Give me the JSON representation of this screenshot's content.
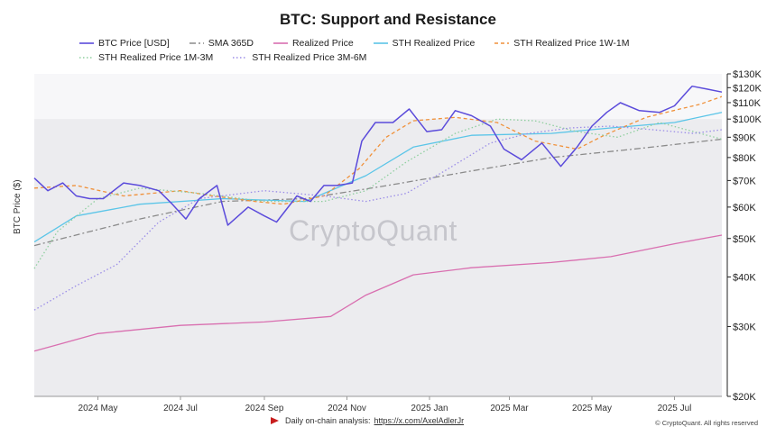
{
  "chart_data": {
    "type": "line",
    "title": "BTC: Support and Resistance",
    "ylabel": "BTC Price ($)",
    "y_scale": "log",
    "ylim": [
      20000,
      130000
    ],
    "y_ticks": [
      20000,
      30000,
      40000,
      50000,
      60000,
      70000,
      80000,
      90000,
      100000,
      110000,
      120000,
      130000
    ],
    "y_tick_labels": [
      "$20K",
      "$30K",
      "$40K",
      "$50K",
      "$60K",
      "$70K",
      "$80K",
      "$90K",
      "$100K",
      "$110K",
      "$120K",
      "$130K"
    ],
    "x_tick_labels": [
      "2024 May",
      "2024 Jul",
      "2024 Sep",
      "2024 Nov",
      "2025 Jan",
      "2025 Mar",
      "2025 May",
      "2025 Jul"
    ],
    "x_range": [
      "2024-03-15",
      "2025-08-05"
    ],
    "shaded_band": {
      "from": 20000,
      "to": 100000,
      "color": "#ececef"
    },
    "legend_position": "top",
    "series": [
      {
        "name": "BTC Price [USD]",
        "color": "#5b4bdb",
        "style": "solid",
        "x": [
          "2024-03-15",
          "2024-03-25",
          "2024-04-05",
          "2024-04-15",
          "2024-04-25",
          "2024-05-05",
          "2024-05-20",
          "2024-06-01",
          "2024-06-15",
          "2024-06-25",
          "2024-07-05",
          "2024-07-15",
          "2024-07-28",
          "2024-08-05",
          "2024-08-20",
          "2024-09-01",
          "2024-09-10",
          "2024-09-25",
          "2024-10-05",
          "2024-10-15",
          "2024-10-25",
          "2024-11-05",
          "2024-11-12",
          "2024-11-22",
          "2024-12-05",
          "2024-12-17",
          "2024-12-30",
          "2025-01-10",
          "2025-01-20",
          "2025-02-01",
          "2025-02-15",
          "2025-02-25",
          "2025-03-10",
          "2025-03-25",
          "2025-04-08",
          "2025-04-20",
          "2025-05-01",
          "2025-05-12",
          "2025-05-22",
          "2025-06-05",
          "2025-06-20",
          "2025-07-01",
          "2025-07-10",
          "2025-07-14",
          "2025-07-25",
          "2025-08-05"
        ],
        "values": [
          71000,
          66000,
          69000,
          64000,
          63000,
          63000,
          69000,
          68000,
          66000,
          61000,
          56000,
          63000,
          68000,
          54000,
          60000,
          57000,
          55000,
          64000,
          62000,
          68000,
          68000,
          69000,
          88000,
          98000,
          98000,
          106000,
          93000,
          94000,
          105000,
          102000,
          96000,
          84000,
          79000,
          87000,
          76000,
          85000,
          96000,
          104000,
          110000,
          105000,
          104000,
          108000,
          117000,
          121000,
          119000,
          117000
        ]
      },
      {
        "name": "SMA 365D",
        "color": "#8a8a8a",
        "style": "dashdot",
        "x": [
          "2024-03-15",
          "2024-06-01",
          "2024-08-01",
          "2024-10-01",
          "2024-12-01",
          "2025-02-01",
          "2025-04-01",
          "2025-06-01",
          "2025-08-05"
        ],
        "values": [
          48000,
          56000,
          62000,
          63000,
          68000,
          74000,
          80000,
          84000,
          89000
        ]
      },
      {
        "name": "Realized Price",
        "color": "#d96fb0",
        "style": "solid",
        "x": [
          "2024-03-15",
          "2024-05-01",
          "2024-07-01",
          "2024-09-01",
          "2024-10-20",
          "2024-11-15",
          "2024-12-20",
          "2025-02-01",
          "2025-04-01",
          "2025-05-15",
          "2025-07-01",
          "2025-08-05"
        ],
        "values": [
          26000,
          28800,
          30200,
          30800,
          31800,
          36000,
          40500,
          42200,
          43500,
          45000,
          48500,
          51000
        ]
      },
      {
        "name": "STH Realized Price",
        "color": "#5bc5e8",
        "style": "solid",
        "x": [
          "2024-03-15",
          "2024-04-15",
          "2024-06-01",
          "2024-08-01",
          "2024-10-01",
          "2024-11-15",
          "2024-12-20",
          "2025-02-01",
          "2025-04-01",
          "2025-05-15",
          "2025-07-01",
          "2025-08-05"
        ],
        "values": [
          49000,
          57000,
          61000,
          63000,
          62000,
          72000,
          85000,
          91000,
          92000,
          95000,
          98000,
          104000
        ]
      },
      {
        "name": "STH Realized Price 1W-1M",
        "color": "#f0913a",
        "style": "dashed",
        "x": [
          "2024-03-15",
          "2024-04-15",
          "2024-05-20",
          "2024-07-01",
          "2024-07-25",
          "2024-08-25",
          "2024-09-15",
          "2024-10-15",
          "2024-11-10",
          "2024-11-30",
          "2024-12-20",
          "2025-01-20",
          "2025-02-20",
          "2025-03-20",
          "2025-04-20",
          "2025-05-10",
          "2025-06-10",
          "2025-07-05",
          "2025-07-20",
          "2025-08-05"
        ],
        "values": [
          67000,
          68000,
          64000,
          66000,
          64000,
          62000,
          61000,
          64000,
          75000,
          90000,
          99000,
          101000,
          98000,
          88000,
          84000,
          91000,
          101000,
          106000,
          109000,
          114000
        ]
      },
      {
        "name": "STH Realized Price 1M-3M",
        "color": "#8fcf9f",
        "style": "dotted",
        "x": [
          "2024-03-15",
          "2024-04-01",
          "2024-05-01",
          "2024-06-01",
          "2024-07-15",
          "2024-09-01",
          "2024-10-15",
          "2024-11-15",
          "2024-12-15",
          "2025-01-20",
          "2025-02-20",
          "2025-03-20",
          "2025-04-20",
          "2025-05-20",
          "2025-06-20",
          "2025-07-20",
          "2025-08-05"
        ],
        "values": [
          42000,
          52000,
          63000,
          67000,
          65000,
          62000,
          62000,
          66000,
          78000,
          92000,
          100000,
          99000,
          93000,
          90000,
          98000,
          92000,
          89000
        ]
      },
      {
        "name": "STH Realized Price 3M-6M",
        "color": "#9b8de8",
        "style": "dotted",
        "x": [
          "2024-03-15",
          "2024-04-15",
          "2024-05-15",
          "2024-06-15",
          "2024-07-15",
          "2024-09-01",
          "2024-10-15",
          "2024-11-15",
          "2024-12-15",
          "2025-01-15",
          "2025-02-15",
          "2025-03-15",
          "2025-04-15",
          "2025-05-15",
          "2025-06-15",
          "2025-07-15",
          "2025-08-05"
        ],
        "values": [
          33000,
          38000,
          43000,
          55000,
          63000,
          66000,
          64000,
          62000,
          65000,
          75000,
          87000,
          92000,
          95000,
          96000,
          94000,
          92000,
          94000
        ]
      }
    ]
  },
  "watermark": "CryptoQuant",
  "footer": {
    "text": "Daily on-chain analysis:",
    "link": "https://x.com/AxelAdlerJr",
    "copyright": "© CryptoQuant. All rights reserved"
  }
}
